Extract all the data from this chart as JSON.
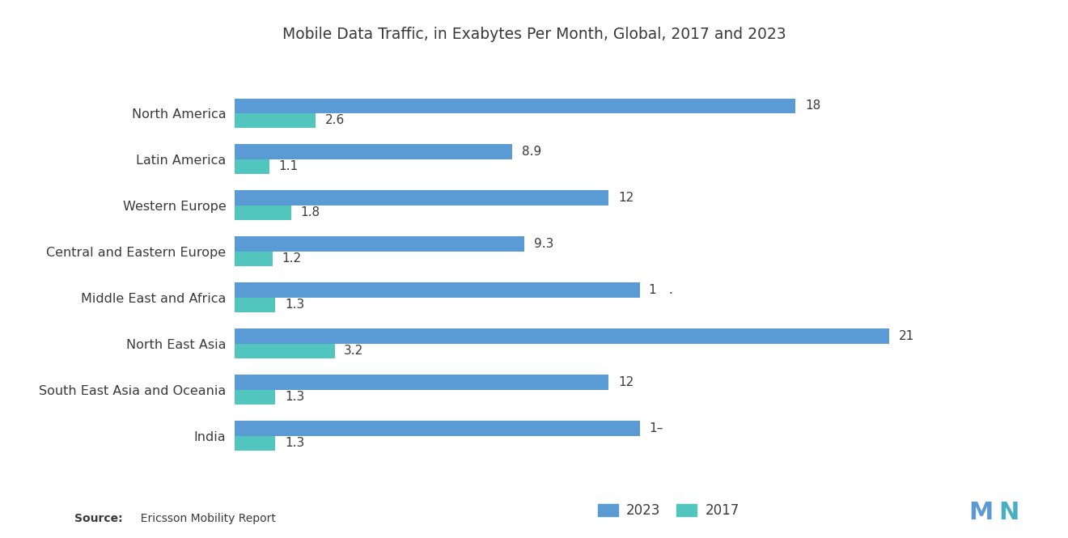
{
  "title": "Mobile Data Traffic, in Exabytes Per Month, Global, 2017 and 2023",
  "categories": [
    "North America",
    "Latin America",
    "Western Europe",
    "Central and Eastern Europe",
    "Middle East and Africa",
    "North East Asia",
    "South East Asia and Oceania",
    "India"
  ],
  "values_2023": [
    18,
    8.9,
    12,
    9.3,
    13,
    21,
    12,
    13
  ],
  "values_2017": [
    2.6,
    1.1,
    1.8,
    1.2,
    1.3,
    3.2,
    1.3,
    1.3
  ],
  "labels_2023": [
    "18",
    "8.9",
    "12",
    "9.3",
    "1 .",
    "21",
    "12",
    "1–"
  ],
  "labels_2017": [
    "2.6",
    "1.1",
    "1.8",
    "1.2",
    "1.3",
    "3.2",
    "1.3",
    "1.3"
  ],
  "color_2023": "#5b9bd5",
  "color_2017": "#52c5be",
  "source_label_bold": "Source:",
  "source_label_normal": "  Ericsson Mobility Report",
  "legend_2023": "2023",
  "legend_2017": "2017",
  "bg_color": "#ffffff",
  "bar_height": 0.32,
  "xlim": [
    0,
    24
  ],
  "logo_color": "#4aafc4"
}
